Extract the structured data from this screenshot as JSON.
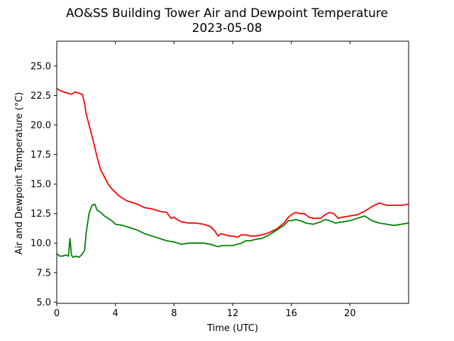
{
  "chart_data": {
    "type": "line",
    "title": "AO&SS Building Tower Air and Dewpoint Temperature",
    "subtitle": "2023-05-08",
    "xlabel": "Time (UTC)",
    "ylabel": "Air and Dewpoint Temperature (°C)",
    "xlim": [
      0,
      24
    ],
    "ylim": [
      4.9,
      27.1
    ],
    "x_ticks": [
      0,
      4,
      8,
      12,
      16,
      20
    ],
    "x_tick_labels": [
      "0",
      "4",
      "8",
      "12",
      "16",
      "20"
    ],
    "y_ticks": [
      5.0,
      7.5,
      10.0,
      12.5,
      15.0,
      17.5,
      20.0,
      22.5,
      25.0
    ],
    "y_tick_labels": [
      "5.0",
      "7.5",
      "10.0",
      "12.5",
      "15.0",
      "17.5",
      "20.0",
      "22.5",
      "25.0"
    ],
    "grid": false,
    "legend": "none",
    "series": [
      {
        "color": "#ff0000",
        "x": [
          0,
          0.25,
          0.5,
          0.75,
          1.0,
          1.25,
          1.5,
          1.75,
          1.9,
          2.0,
          2.25,
          2.5,
          2.75,
          3.0,
          3.25,
          3.5,
          3.75,
          4.0,
          4.25,
          4.5,
          4.75,
          5.0,
          5.5,
          6.0,
          6.5,
          7.0,
          7.5,
          7.8,
          8.0,
          8.2,
          8.5,
          9.0,
          9.5,
          10.0,
          10.5,
          10.8,
          11.0,
          11.2,
          11.5,
          11.8,
          12.0,
          12.3,
          12.6,
          12.9,
          13.2,
          13.5,
          14.0,
          14.5,
          15.0,
          15.5,
          15.8,
          16.0,
          16.3,
          16.6,
          16.9,
          17.2,
          17.5,
          18.0,
          18.3,
          18.6,
          18.9,
          19.2,
          19.5,
          20.0,
          20.5,
          21.0,
          21.5,
          22.0,
          22.5,
          23.0,
          23.5,
          24.0
        ],
        "values": [
          23.1,
          22.9,
          22.8,
          22.7,
          22.6,
          22.8,
          22.7,
          22.6,
          21.8,
          21.0,
          19.8,
          18.6,
          17.3,
          16.2,
          15.6,
          15.0,
          14.6,
          14.3,
          14.0,
          13.8,
          13.6,
          13.5,
          13.3,
          13.0,
          12.9,
          12.7,
          12.6,
          12.1,
          12.2,
          12.0,
          11.8,
          11.7,
          11.7,
          11.6,
          11.4,
          11.0,
          10.6,
          10.8,
          10.7,
          10.6,
          10.6,
          10.5,
          10.7,
          10.7,
          10.6,
          10.6,
          10.7,
          10.9,
          11.2,
          11.7,
          12.2,
          12.4,
          12.6,
          12.5,
          12.5,
          12.2,
          12.1,
          12.1,
          12.4,
          12.6,
          12.5,
          12.1,
          12.2,
          12.3,
          12.4,
          12.7,
          13.1,
          13.4,
          13.2,
          13.2,
          13.2,
          13.3
        ]
      },
      {
        "color": "#008000",
        "x": [
          0,
          0.2,
          0.4,
          0.6,
          0.8,
          0.9,
          1.0,
          1.1,
          1.3,
          1.5,
          1.7,
          1.9,
          2.0,
          2.2,
          2.4,
          2.6,
          2.75,
          3.0,
          3.25,
          3.5,
          3.75,
          4.0,
          4.5,
          5.0,
          5.5,
          6.0,
          6.5,
          7.0,
          7.5,
          8.0,
          8.5,
          9.0,
          9.5,
          10.0,
          10.5,
          11.0,
          11.3,
          11.6,
          12.0,
          12.3,
          12.6,
          12.9,
          13.2,
          13.5,
          14.0,
          14.5,
          15.0,
          15.5,
          15.8,
          16.0,
          16.3,
          16.6,
          17.0,
          17.5,
          18.0,
          18.3,
          18.6,
          19.0,
          19.5,
          20.0,
          20.5,
          21.0,
          21.5,
          22.0,
          22.5,
          23.0,
          23.5,
          24.0
        ],
        "values": [
          9.1,
          8.9,
          8.9,
          9.0,
          8.9,
          10.4,
          9.0,
          8.8,
          8.9,
          8.8,
          9.0,
          9.4,
          10.8,
          12.5,
          13.2,
          13.3,
          12.8,
          12.6,
          12.3,
          12.1,
          11.9,
          11.6,
          11.5,
          11.3,
          11.1,
          10.8,
          10.6,
          10.4,
          10.2,
          10.1,
          9.9,
          10.0,
          10.0,
          10.0,
          9.9,
          9.7,
          9.8,
          9.8,
          9.8,
          9.9,
          10.0,
          10.2,
          10.2,
          10.3,
          10.4,
          10.7,
          11.1,
          11.5,
          11.9,
          11.9,
          12.0,
          11.9,
          11.7,
          11.6,
          11.8,
          12.0,
          11.9,
          11.7,
          11.8,
          11.9,
          12.1,
          12.3,
          11.9,
          11.7,
          11.6,
          11.5,
          11.6,
          11.7
        ]
      }
    ]
  }
}
